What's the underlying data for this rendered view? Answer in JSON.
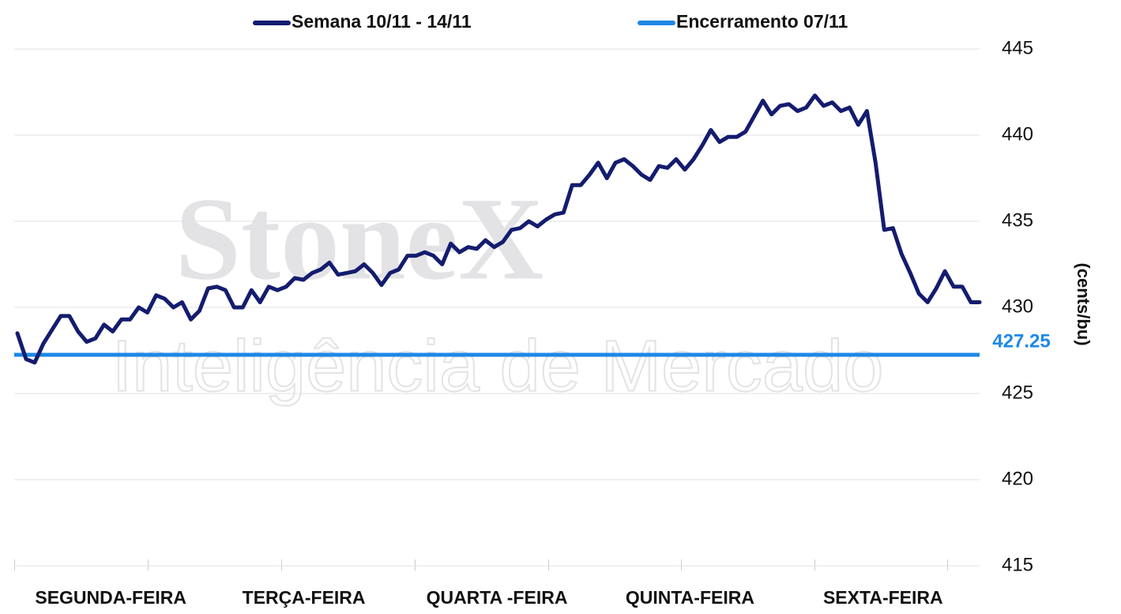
{
  "chart_data": {
    "type": "line",
    "legend": "top",
    "watermark": [
      "StoneX",
      "Inteligência de Mercado"
    ],
    "x_axis_labels": [
      "SEGUNDA-FEIRA",
      "TERÇA-FEIRA",
      "QUARTA -FEIRA",
      "QUINTA-FEIRA",
      "SEXTA-FEIRA"
    ],
    "ylabel": "(cents/bu)",
    "ylim": [
      415,
      445
    ],
    "yticks": [
      415,
      420,
      425,
      430,
      435,
      440,
      445
    ],
    "grid": true,
    "series": [
      {
        "name": "Semana 10/11 - 14/11",
        "color": "#141c6e",
        "values": [
          428.5,
          427.0,
          426.8,
          427.9,
          428.7,
          429.5,
          429.5,
          428.6,
          428.0,
          428.2,
          429.0,
          428.6,
          429.3,
          429.3,
          430.0,
          429.7,
          430.7,
          430.5,
          430.0,
          430.3,
          429.3,
          429.8,
          431.1,
          431.2,
          431.0,
          430.0,
          430.0,
          431.0,
          430.3,
          431.2,
          431.0,
          431.2,
          431.7,
          431.6,
          432.0,
          432.2,
          432.6,
          431.9,
          432.0,
          432.1,
          432.5,
          432.0,
          431.3,
          432.0,
          432.2,
          433.0,
          433.0,
          433.2,
          433.0,
          432.5,
          433.7,
          433.2,
          433.5,
          433.4,
          433.9,
          433.5,
          433.8,
          434.5,
          434.6,
          435.0,
          434.7,
          435.1,
          435.4,
          435.5,
          437.1,
          437.1,
          437.7,
          438.4,
          437.5,
          438.4,
          438.6,
          438.2,
          437.7,
          437.4,
          438.2,
          438.1,
          438.6,
          438.0,
          438.6,
          439.4,
          440.3,
          439.6,
          439.9,
          439.9,
          440.2,
          441.1,
          442.0,
          441.2,
          441.7,
          441.8,
          441.4,
          441.6,
          442.3,
          441.7,
          441.9,
          441.4,
          441.6,
          440.6,
          441.4,
          438.4,
          434.5,
          434.6,
          433.1,
          432.0,
          430.8,
          430.3,
          431.1,
          432.1,
          431.2,
          431.2,
          430.3,
          430.3
        ]
      },
      {
        "name": "Encerramento 07/11",
        "color": "#1e88e5",
        "values": [
          427.25
        ]
      }
    ]
  }
}
